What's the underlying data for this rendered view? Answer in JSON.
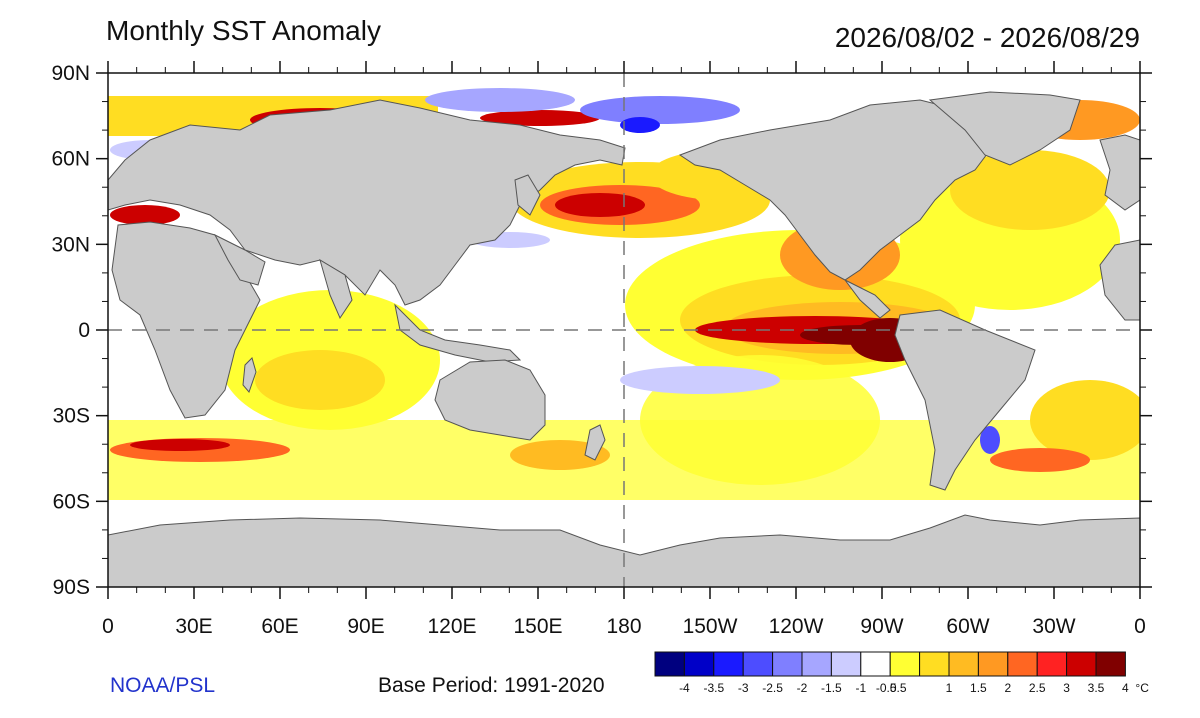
{
  "header": {
    "title": "Monthly SST Anomaly",
    "date_range": "2026/08/02 - 2026/08/29"
  },
  "axes": {
    "lat_labels": [
      "90N",
      "60N",
      "30N",
      "0",
      "30S",
      "60S",
      "90S"
    ],
    "lon_labels": [
      "0",
      "30E",
      "60E",
      "90E",
      "120E",
      "150E",
      "180",
      "150W",
      "120W",
      "90W",
      "60W",
      "30W",
      "0"
    ]
  },
  "footer": {
    "credit": "NOAA/PSL",
    "base_period": "Base Period: 1991-2020"
  },
  "colorbar": {
    "colors": [
      "#00007f",
      "#0000c8",
      "#1a1aff",
      "#4d4dff",
      "#7f7fff",
      "#a6a6ff",
      "#ccccff",
      "#ffffff",
      "#ffff33",
      "#ffdd22",
      "#ffbb22",
      "#ff9922",
      "#ff6622",
      "#ff2222",
      "#cc0000",
      "#800000"
    ],
    "tick_labels": [
      "-4",
      "-3.5",
      "-3",
      "-2.5",
      "-2",
      "-1.5",
      "-1",
      "-0.5",
      "0.5",
      "1",
      "1.5",
      "2",
      "2.5",
      "3",
      "3.5",
      "4"
    ],
    "unit": "°C"
  },
  "palette": {
    "land": "#cbcbcb",
    "coast": "#555555",
    "ocean_neutral": "#ffffff"
  }
}
